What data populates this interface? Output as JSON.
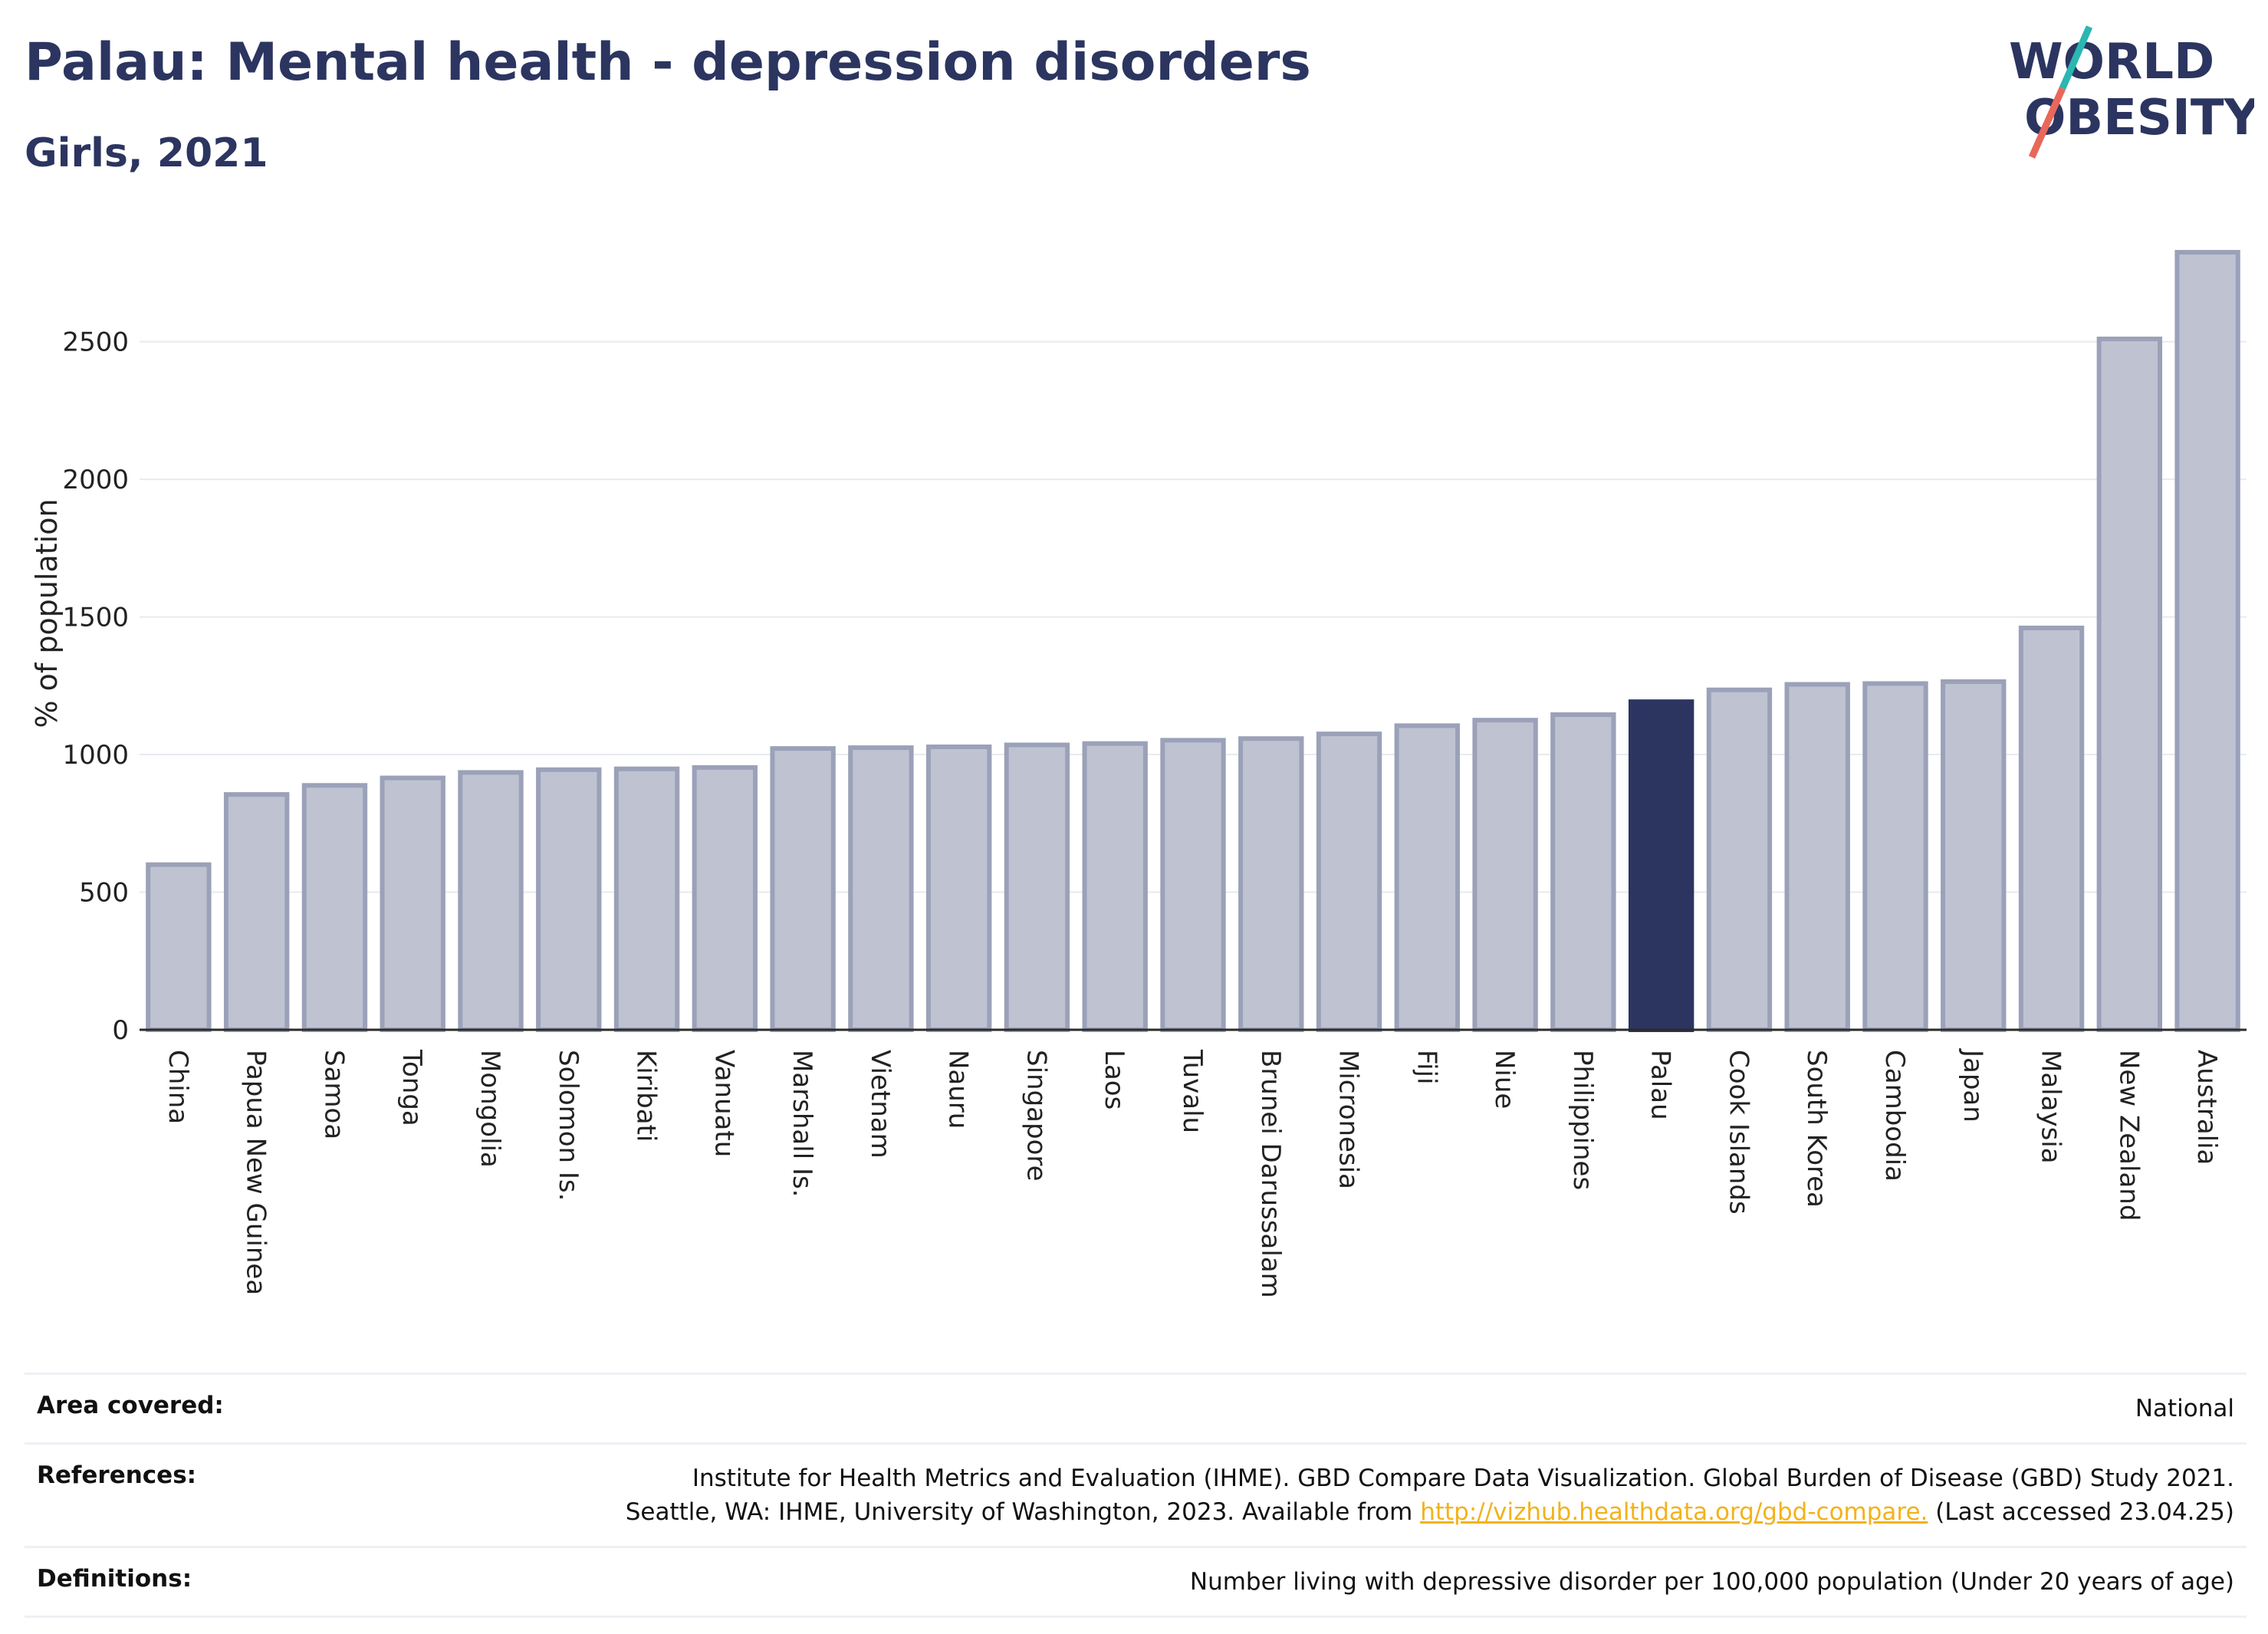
{
  "header": {
    "title": "Palau: Mental health - depression disorders",
    "subtitle": "Girls, 2021"
  },
  "logo": {
    "line1": "WORLD",
    "line2": "OBESITY",
    "accent_colors": [
      "#2ab7b1",
      "#e8685a"
    ]
  },
  "colors": {
    "bar": "#bfc3d1",
    "bar_border": "#9ba1b8",
    "highlight": "#2b3560",
    "grid": "#e8eaf0",
    "axis": "#2b2b2b"
  },
  "chart_data": {
    "type": "bar",
    "ylabel": "% of population",
    "ylim": [
      0,
      2850
    ],
    "yticks": [
      0,
      500,
      1000,
      1500,
      2000,
      2500
    ],
    "grid": true,
    "highlight": "Palau",
    "categories": [
      "China",
      "Papua New Guinea",
      "Samoa",
      "Tonga",
      "Mongolia",
      "Solomon Is.",
      "Kiribati",
      "Vanuatu",
      "Marshall Is.",
      "Vietnam",
      "Nauru",
      "Singapore",
      "Laos",
      "Tuvalu",
      "Brunei Darussalam",
      "Micronesia",
      "Fiji",
      "Niue",
      "Philippines",
      "Palau",
      "Cook Islands",
      "South Korea",
      "Cambodia",
      "Japan",
      "Malaysia",
      "New Zealand",
      "Australia"
    ],
    "values": [
      600,
      855,
      888,
      915,
      935,
      945,
      948,
      953,
      1022,
      1025,
      1028,
      1035,
      1040,
      1052,
      1058,
      1075,
      1105,
      1125,
      1145,
      1192,
      1235,
      1255,
      1258,
      1265,
      1460,
      2510,
      2825
    ]
  },
  "footer": {
    "area_label": "Area covered:",
    "area_value": "National",
    "references_label": "References:",
    "references_line1": "Institute for Health Metrics and Evaluation (IHME). GBD Compare Data Visualization. Global Burden of Disease (GBD) Study 2021.",
    "references_line2": "Seattle, WA: IHME, University of Washington, 2023. Available from",
    "references_link": "http://vizhub.healthdata.org/gbd-compare.",
    "references_suffix": "(Last accessed 23.04.25)",
    "definitions_label": "Definitions:",
    "definitions_value": "Number living with depressive disorder per 100,000 population (Under 20 years of age)"
  }
}
